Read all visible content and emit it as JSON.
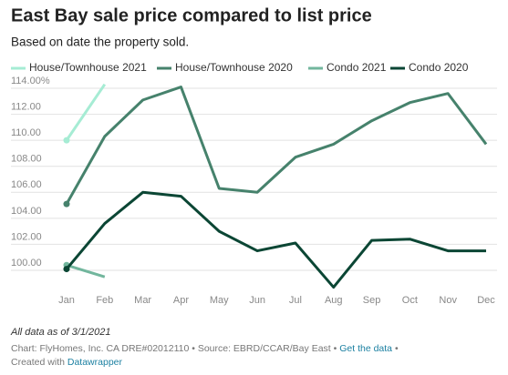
{
  "chart_data": {
    "type": "line",
    "title": "East Bay sale price compared to list price",
    "subtitle": "Based on date the property sold.",
    "categories": [
      "Jan",
      "Feb",
      "Mar",
      "Apr",
      "May",
      "Jun",
      "Jul",
      "Aug",
      "Sep",
      "Oct",
      "Nov",
      "Dec"
    ],
    "series": [
      {
        "name": "House/Townhouse 2021",
        "color": "#a6ecd4",
        "values": [
          110.0,
          114.3,
          null,
          null,
          null,
          null,
          null,
          null,
          null,
          null,
          null,
          null
        ]
      },
      {
        "name": "House/Townhouse 2020",
        "color": "#46826c",
        "values": [
          105.1,
          110.3,
          113.1,
          114.1,
          106.3,
          106.0,
          108.7,
          109.7,
          111.5,
          112.9,
          113.6,
          109.7
        ]
      },
      {
        "name": "Condo 2021",
        "color": "#72b69d",
        "values": [
          100.4,
          99.5,
          null,
          null,
          null,
          null,
          null,
          null,
          null,
          null,
          null,
          null
        ]
      },
      {
        "name": "Condo 2020",
        "color": "#0b4634",
        "values": [
          100.1,
          103.6,
          106.0,
          105.7,
          103.0,
          101.5,
          102.1,
          98.7,
          102.3,
          102.4,
          101.5,
          101.5
        ]
      }
    ],
    "ylim": [
      98.5,
      114.5
    ],
    "yticks": [
      {
        "value": 100,
        "label": "100.00"
      },
      {
        "value": 102,
        "label": "102.00"
      },
      {
        "value": 104,
        "label": "104.00"
      },
      {
        "value": 106,
        "label": "106.00"
      },
      {
        "value": 108,
        "label": "108.00"
      },
      {
        "value": 110,
        "label": "110.00"
      },
      {
        "value": 112,
        "label": "112.00"
      },
      {
        "value": 114,
        "label": "114.00%"
      }
    ],
    "grid": true,
    "note": "All data as of 3/1/2021",
    "credit": "Chart: FlyHomes, Inc. CA DRE#02012110 • Source: EBRD/CCAR/Bay East •",
    "get_data": "Get the data",
    "created_with": "Created with",
    "tool": "Datawrapper"
  }
}
